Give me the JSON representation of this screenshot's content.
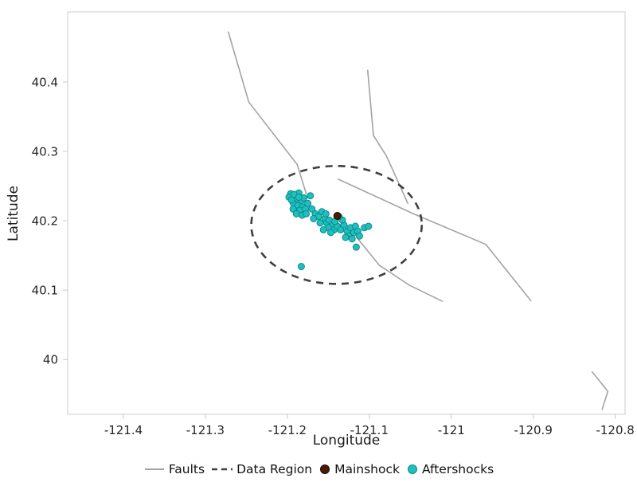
{
  "chart_data": {
    "type": "scatter",
    "title": "",
    "xlabel": "Longitude",
    "ylabel": "Latitude",
    "xlim": [
      -121.468,
      -120.788
    ],
    "ylim": [
      39.921,
      40.501
    ],
    "grid": false,
    "frame_color": "#d4d4d4",
    "tick_color": "#c9c9c9",
    "text_color": "#262626",
    "legend_position": "bottom-center",
    "xticks": [
      {
        "v": -121.4,
        "label": "-121.4"
      },
      {
        "v": -121.3,
        "label": "-121.3"
      },
      {
        "v": -121.2,
        "label": "-121.2"
      },
      {
        "v": -121.1,
        "label": "-121.1"
      },
      {
        "v": -121.0,
        "label": "-121"
      },
      {
        "v": -120.9,
        "label": "-120.9"
      },
      {
        "v": -120.8,
        "label": "-120.8"
      }
    ],
    "yticks": [
      {
        "v": 40.0,
        "label": "40"
      },
      {
        "v": 40.1,
        "label": "40.1"
      },
      {
        "v": 40.2,
        "label": "40.2"
      },
      {
        "v": 40.3,
        "label": "40.3"
      },
      {
        "v": 40.4,
        "label": "40.4"
      }
    ],
    "series": {
      "faults": {
        "label": "Faults",
        "color": "#a3a3a3",
        "width": 1.6,
        "polylines": [
          [
            [
              -121.272,
              40.472
            ],
            [
              -121.247,
              40.371
            ],
            [
              -121.188,
              40.281
            ],
            [
              -121.177,
              40.239
            ]
          ],
          [
            [
              -121.102,
              40.417
            ],
            [
              -121.095,
              40.323
            ],
            [
              -121.079,
              40.293
            ],
            [
              -121.053,
              40.225
            ]
          ],
          [
            [
              -121.138,
              40.26
            ],
            [
              -121.046,
              40.21
            ],
            [
              -120.958,
              40.166
            ],
            [
              -120.903,
              40.085
            ]
          ],
          [
            [
              -121.116,
              40.177
            ],
            [
              -121.088,
              40.136
            ],
            [
              -121.051,
              40.107
            ],
            [
              -121.011,
              40.084
            ]
          ],
          [
            [
              -120.828,
              39.982
            ],
            [
              -120.809,
              39.954
            ],
            [
              -120.816,
              39.928
            ]
          ]
        ]
      },
      "data_region": {
        "label": "Data Region",
        "color": "#3f3f3f",
        "dash": [
          9,
          7
        ],
        "stroke_width": 2.6,
        "ellipse": {
          "cx": -121.14,
          "cy": 40.194,
          "rx": 0.104,
          "ry": 0.085
        }
      },
      "mainshock": {
        "label": "Mainshock",
        "color": "#4a1a02",
        "edge": "#1d0a00",
        "radius": 4.5,
        "point": [
          -121.139,
          40.207
        ]
      },
      "aftershocks": {
        "label": "Aftershocks",
        "color": "#1fbfbf",
        "edge": "#0d8a8a",
        "radius": 4,
        "points": [
          [
            -121.196,
            40.239
          ],
          [
            -121.191,
            40.236
          ],
          [
            -121.186,
            40.24
          ],
          [
            -121.189,
            40.231
          ],
          [
            -121.193,
            40.226
          ],
          [
            -121.183,
            40.229
          ],
          [
            -121.18,
            40.233
          ],
          [
            -121.187,
            40.222
          ],
          [
            -121.182,
            40.22
          ],
          [
            -121.193,
            40.217
          ],
          [
            -121.185,
            40.215
          ],
          [
            -121.178,
            40.217
          ],
          [
            -121.189,
            40.21
          ],
          [
            -121.182,
            40.208
          ],
          [
            -121.175,
            40.225
          ],
          [
            -121.172,
            40.236
          ],
          [
            -121.198,
            40.234
          ],
          [
            -121.195,
            40.23
          ],
          [
            -121.192,
            40.238
          ],
          [
            -121.186,
            40.234
          ],
          [
            -121.17,
            40.217
          ],
          [
            -121.166,
            40.21
          ],
          [
            -121.162,
            40.206
          ],
          [
            -121.158,
            40.213
          ],
          [
            -121.154,
            40.203
          ],
          [
            -121.16,
            40.197
          ],
          [
            -121.152,
            40.197
          ],
          [
            -121.149,
            40.201
          ],
          [
            -121.145,
            40.194
          ],
          [
            -121.15,
            40.19
          ],
          [
            -121.156,
            40.187
          ],
          [
            -121.143,
            40.187
          ],
          [
            -121.147,
            40.183
          ],
          [
            -121.139,
            40.192
          ],
          [
            -121.177,
            40.21
          ],
          [
            -121.168,
            40.203
          ],
          [
            -121.153,
            40.21
          ],
          [
            -121.135,
            40.187
          ],
          [
            -121.131,
            40.194
          ],
          [
            -121.127,
            40.185
          ],
          [
            -121.123,
            40.19
          ],
          [
            -121.119,
            40.183
          ],
          [
            -121.125,
            40.178
          ],
          [
            -121.117,
            40.192
          ],
          [
            -121.114,
            40.185
          ],
          [
            -121.129,
            40.176
          ],
          [
            -121.121,
            40.174
          ],
          [
            -121.112,
            40.178
          ],
          [
            -121.106,
            40.19
          ],
          [
            -121.133,
            40.201
          ],
          [
            -121.137,
            40.206
          ],
          [
            -121.142,
            40.199
          ],
          [
            -121.183,
            40.134
          ],
          [
            -121.116,
            40.162
          ],
          [
            -121.101,
            40.192
          ]
        ]
      }
    },
    "legend": [
      {
        "key": "faults",
        "label": "Faults",
        "swatch": "line",
        "color": "#a3a3a3"
      },
      {
        "key": "data-region",
        "label": "Data Region",
        "swatch": "dashed-line",
        "color": "#3f3f3f"
      },
      {
        "key": "mainshock",
        "label": "Mainshock",
        "swatch": "dot",
        "color": "#4a1a02",
        "edge": "#1d0a00"
      },
      {
        "key": "aftershocks",
        "label": "Aftershocks",
        "swatch": "dot",
        "color": "#1fbfbf",
        "edge": "#0d8a8a"
      }
    ]
  }
}
